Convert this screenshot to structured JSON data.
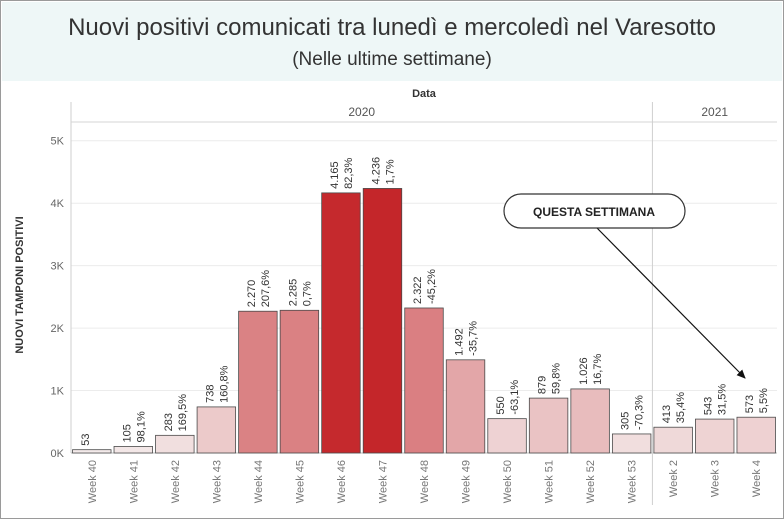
{
  "title": "Nuovi positivi comunicati tra lunedì e mercoledì nel Varesotto",
  "subtitle": "(Nelle ultime settimane)",
  "chart_data": {
    "type": "bar",
    "xlabel": "Data",
    "ylabel": "NUOVI TAMPONI POSITIVI",
    "ylim": [
      0,
      5300
    ],
    "yticks": [
      {
        "value": 0,
        "label": "0K"
      },
      {
        "value": 1000,
        "label": "1K"
      },
      {
        "value": 2000,
        "label": "2K"
      },
      {
        "value": 3000,
        "label": "3K"
      },
      {
        "value": 4000,
        "label": "4K"
      },
      {
        "value": 5000,
        "label": "5K"
      }
    ],
    "grid": true,
    "groups": [
      {
        "year": "2020",
        "count": 14
      },
      {
        "year": "2021",
        "count": 3
      }
    ],
    "categories": [
      "Week 40",
      "Week 41",
      "Week 42",
      "Week 43",
      "Week 44",
      "Week 45",
      "Week 46",
      "Week 47",
      "Week 48",
      "Week 49",
      "Week 50",
      "Week 51",
      "Week 52",
      "Week 53",
      "Week 2",
      "Week 3",
      "Week 4"
    ],
    "values": [
      53,
      105,
      283,
      738,
      2270,
      2285,
      4165,
      4236,
      2322,
      1492,
      550,
      879,
      1026,
      305,
      413,
      543,
      573
    ],
    "value_labels": [
      "53",
      "105",
      "283",
      "738",
      "2.270",
      "2.285",
      "4.165",
      "4.236",
      "2.322",
      "1.492",
      "550",
      "879",
      "1.026",
      "305",
      "413",
      "543",
      "573"
    ],
    "pct_labels": [
      "",
      "98,1%",
      "169,5%",
      "160,8%",
      "207,6%",
      "0,7%",
      "82,3%",
      "1,7%",
      "-45,2%",
      "-35,7%",
      "-63,1%",
      "59,8%",
      "16,7%",
      "-70,3%",
      "35,4%",
      "31,5%",
      "5,5%"
    ],
    "colors": {
      "low": "#f4ecec",
      "high": "#c4262a",
      "stroke": "#4a4a4a",
      "grid": "#ececec",
      "header_bg": "#eef7f7"
    },
    "annotation": {
      "text": "QUESTA SETTIMANA",
      "target": "Week 4"
    }
  }
}
